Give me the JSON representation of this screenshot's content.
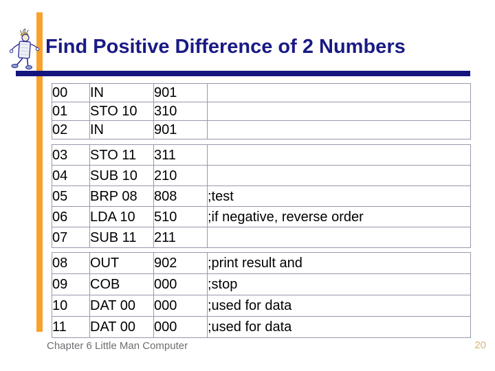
{
  "title": "Find Positive Difference of 2 Numbers",
  "footer": {
    "left": "Chapter 6 Little Man Computer",
    "page_number": "20"
  },
  "icons": {
    "mascot": "little-man-computer-mascot-icon"
  },
  "colors": {
    "title": "#1a1a85",
    "rule": "#15157f",
    "accent_bar": "#f9a22b",
    "table_border": "#9598ad",
    "footer_text": "#6e6e73",
    "page_number": "#d2b878",
    "cell_text": "#000000"
  },
  "program_table": {
    "columns": [
      "address",
      "instruction",
      "code",
      "comment"
    ],
    "groups": [
      {
        "rows": [
          {
            "address": "00",
            "instruction": "IN",
            "code": "901",
            "comment": ""
          },
          {
            "address": "01",
            "instruction": "STO 10",
            "code": "310",
            "comment": ""
          },
          {
            "address": "02",
            "instruction": "IN",
            "code": "901",
            "comment": ""
          }
        ]
      },
      {
        "rows": [
          {
            "address": "03",
            "instruction": "STO 11",
            "code": "311",
            "comment": ""
          },
          {
            "address": "04",
            "instruction": "SUB 10",
            "code": "210",
            "comment": ""
          },
          {
            "address": "05",
            "instruction": "BRP 08",
            "code": "808",
            "comment": ";test"
          },
          {
            "address": "06",
            "instruction": "LDA 10",
            "code": "510",
            "comment": ";if negative, reverse order"
          },
          {
            "address": "07",
            "instruction": "SUB 11",
            "code": "211",
            "comment": ""
          }
        ]
      },
      {
        "rows": [
          {
            "address": "08",
            "instruction": "OUT",
            "code": "902",
            "comment": ";print result and"
          },
          {
            "address": "09",
            "instruction": "COB",
            "code": "000",
            "comment": ";stop"
          },
          {
            "address": "10",
            "instruction": "DAT 00",
            "code": "000",
            "comment": ";used for data"
          },
          {
            "address": "11",
            "instruction": "DAT 00",
            "code": "000",
            "comment": ";used for data"
          }
        ]
      }
    ]
  }
}
